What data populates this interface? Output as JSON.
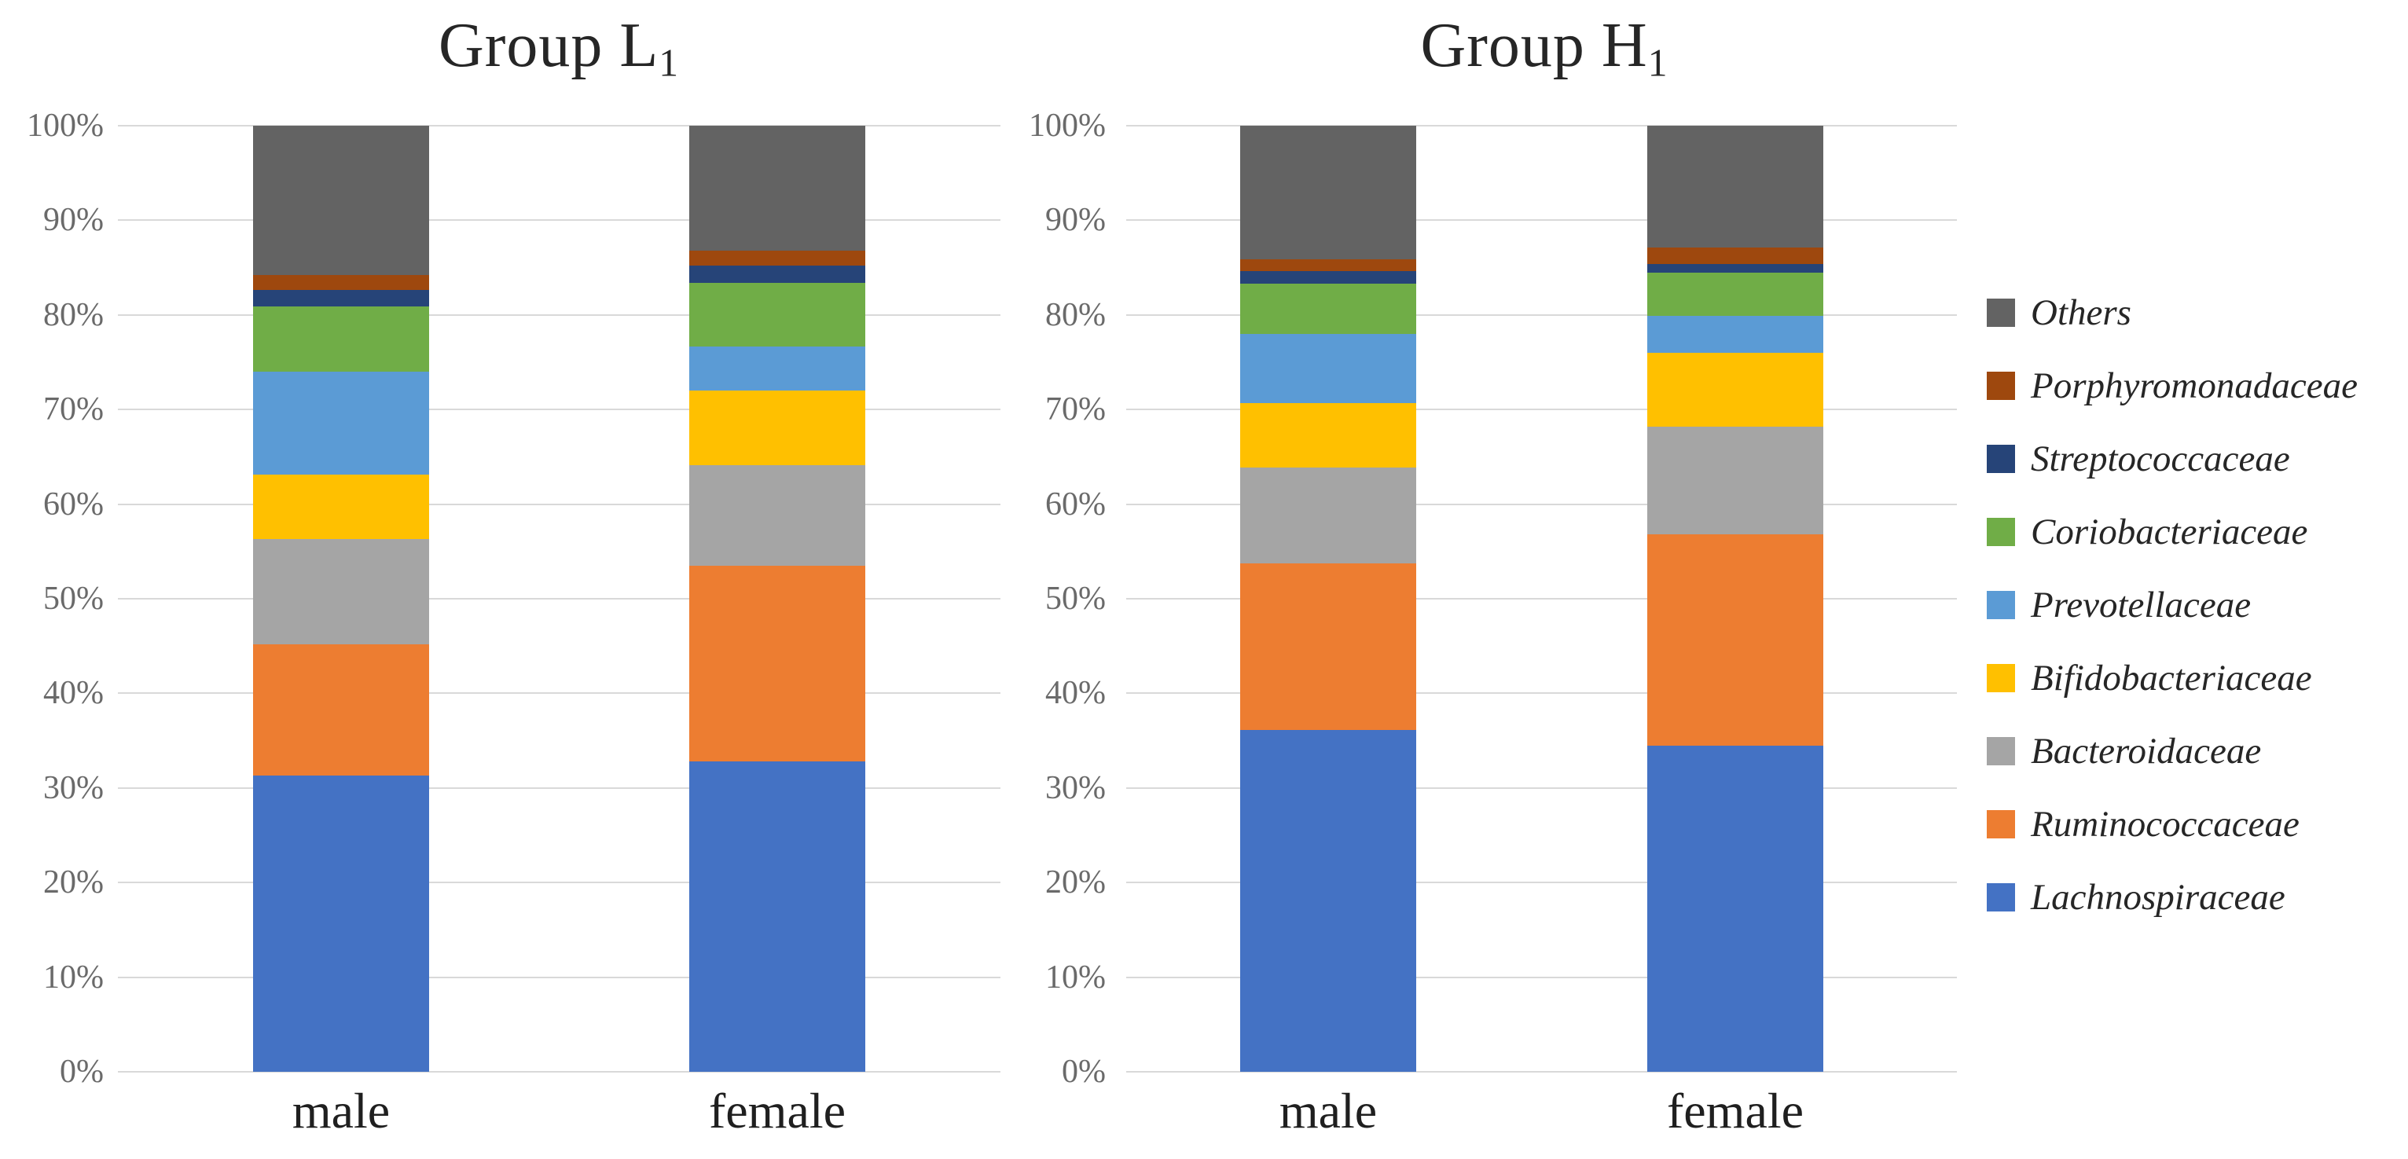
{
  "page": {
    "background": "#ffffff"
  },
  "colors": {
    "gridline": "#d9d9d9",
    "tick_text": "#6a6a6a",
    "title_text": "#262626",
    "category_text": "#1f1f1f",
    "legend_text": "#262626"
  },
  "chart_data": [
    {
      "type": "bar",
      "subtype": "stacked-100",
      "title": "Group L1",
      "title_main": "Group L",
      "title_sub": "1",
      "xlabel": "",
      "ylabel": "",
      "ylim": [
        0,
        100
      ],
      "grid": true,
      "y_ticks": [
        "0%",
        "10%",
        "20%",
        "30%",
        "40%",
        "50%",
        "60%",
        "70%",
        "80%",
        "90%",
        "100%"
      ],
      "categories": [
        "male",
        "female"
      ],
      "series": [
        {
          "name": "Lachnospiraceae",
          "color": "#4472C4",
          "values": [
            31.3,
            32.8
          ]
        },
        {
          "name": "Ruminococcaceae",
          "color": "#ED7D31",
          "values": [
            13.9,
            20.7
          ]
        },
        {
          "name": "Bacteroidaceae",
          "color": "#A5A5A5",
          "values": [
            11.1,
            10.6
          ]
        },
        {
          "name": "Bifidobacteriaceae",
          "color": "#FFC000",
          "values": [
            6.8,
            7.9
          ]
        },
        {
          "name": "Prevotellaceae",
          "color": "#5B9BD5",
          "values": [
            10.9,
            4.7
          ]
        },
        {
          "name": "Coriobacteriaceae",
          "color": "#70AD47",
          "values": [
            6.9,
            6.7
          ]
        },
        {
          "name": "Streptococcaceae",
          "color": "#264478",
          "values": [
            1.7,
            1.8
          ]
        },
        {
          "name": "Porphyromonadaceae",
          "color": "#9E480E",
          "values": [
            1.6,
            1.6
          ]
        },
        {
          "name": "Others",
          "color": "#636363",
          "values": [
            15.8,
            13.2
          ]
        }
      ]
    },
    {
      "type": "bar",
      "subtype": "stacked-100",
      "title": "Group H1",
      "title_main": "Group H",
      "title_sub": "1",
      "xlabel": "",
      "ylabel": "",
      "ylim": [
        0,
        100
      ],
      "grid": true,
      "y_ticks": [
        "0%",
        "10%",
        "20%",
        "30%",
        "40%",
        "50%",
        "60%",
        "70%",
        "80%",
        "90%",
        "100%"
      ],
      "categories": [
        "male",
        "female"
      ],
      "series": [
        {
          "name": "Lachnospiraceae",
          "color": "#4472C4",
          "values": [
            36.1,
            34.5
          ]
        },
        {
          "name": "Ruminococcaceae",
          "color": "#ED7D31",
          "values": [
            17.6,
            22.3
          ]
        },
        {
          "name": "Bacteroidaceae",
          "color": "#A5A5A5",
          "values": [
            10.2,
            11.4
          ]
        },
        {
          "name": "Bifidobacteriaceae",
          "color": "#FFC000",
          "values": [
            6.8,
            7.8
          ]
        },
        {
          "name": "Prevotellaceae",
          "color": "#5B9BD5",
          "values": [
            7.3,
            3.9
          ]
        },
        {
          "name": "Coriobacteriaceae",
          "color": "#70AD47",
          "values": [
            5.3,
            4.6
          ]
        },
        {
          "name": "Streptococcaceae",
          "color": "#264478",
          "values": [
            1.3,
            0.9
          ]
        },
        {
          "name": "Porphyromonadaceae",
          "color": "#9E480E",
          "values": [
            1.3,
            1.7
          ]
        },
        {
          "name": "Others",
          "color": "#636363",
          "values": [
            14.1,
            12.9
          ]
        }
      ]
    }
  ],
  "legend": {
    "position": "right",
    "order_note": "displayed top-to-bottom, reverse of stacking order",
    "items": [
      "Others",
      "Porphyromonadaceae",
      "Streptococcaceae",
      "Coriobacteriaceae",
      "Prevotellaceae",
      "Bifidobacteriaceae",
      "Bacteroidaceae",
      "Ruminococcaceae",
      "Lachnospiraceae"
    ]
  }
}
